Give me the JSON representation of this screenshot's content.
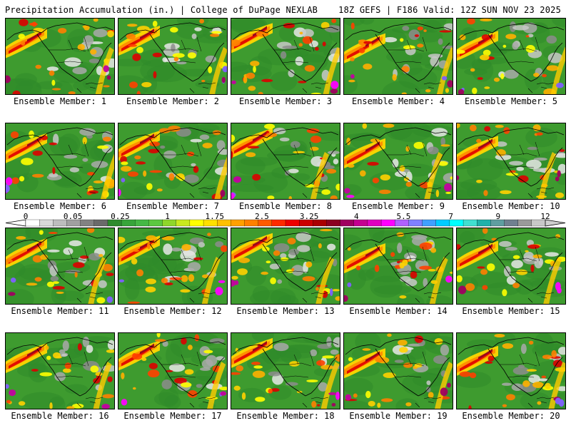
{
  "header": {
    "left_title": "Precipitation Accumulation (in.) | College of DuPage NEXLAB",
    "right_title": "18Z GEFS | F186 Valid: 12Z SUN NOV 23 2025"
  },
  "colorbar": {
    "labels": [
      "0",
      "0.05",
      "0.25",
      "1",
      "1.75",
      "2.5",
      "3.25",
      "4",
      "5.5",
      "7",
      "9",
      "12"
    ],
    "colors": [
      "#ffffff",
      "#d9d9d9",
      "#bdbdbd",
      "#a0a0a0",
      "#828282",
      "#6a6a6a",
      "#2e8b2e",
      "#37a53a",
      "#45b845",
      "#5cc840",
      "#8fd62a",
      "#c8e81e",
      "#ffff00",
      "#ffe000",
      "#ffc000",
      "#ffa000",
      "#ff8000",
      "#ff5a00",
      "#ff2a00",
      "#ee0000",
      "#cc0000",
      "#aa0000",
      "#8b0020",
      "#a00060",
      "#c40090",
      "#e000c0",
      "#ff00ff",
      "#b060ff",
      "#8080ff",
      "#40a0ff",
      "#00ccff",
      "#00ffff",
      "#40e0d0",
      "#20b2aa",
      "#5f9ea0",
      "#708090",
      "#9a9a9a",
      "#c8c8c8"
    ]
  },
  "members": [
    {
      "caption": "Ensemble Member: 1"
    },
    {
      "caption": "Ensemble Member: 2"
    },
    {
      "caption": "Ensemble Member: 3"
    },
    {
      "caption": "Ensemble Member: 4"
    },
    {
      "caption": "Ensemble Member: 5"
    },
    {
      "caption": "Ensemble Member: 6"
    },
    {
      "caption": "Ensemble Member: 7"
    },
    {
      "caption": "Ensemble Member: 8"
    },
    {
      "caption": "Ensemble Member: 9"
    },
    {
      "caption": "Ensemble Member: 10"
    },
    {
      "caption": "Ensemble Member: 11"
    },
    {
      "caption": "Ensemble Member: 12"
    },
    {
      "caption": "Ensemble Member: 13"
    },
    {
      "caption": "Ensemble Member: 14"
    },
    {
      "caption": "Ensemble Member: 15"
    },
    {
      "caption": "Ensemble Member: 16"
    },
    {
      "caption": "Ensemble Member: 17"
    },
    {
      "caption": "Ensemble Member: 18"
    },
    {
      "caption": "Ensemble Member: 19"
    },
    {
      "caption": "Ensemble Member: 20"
    }
  ]
}
